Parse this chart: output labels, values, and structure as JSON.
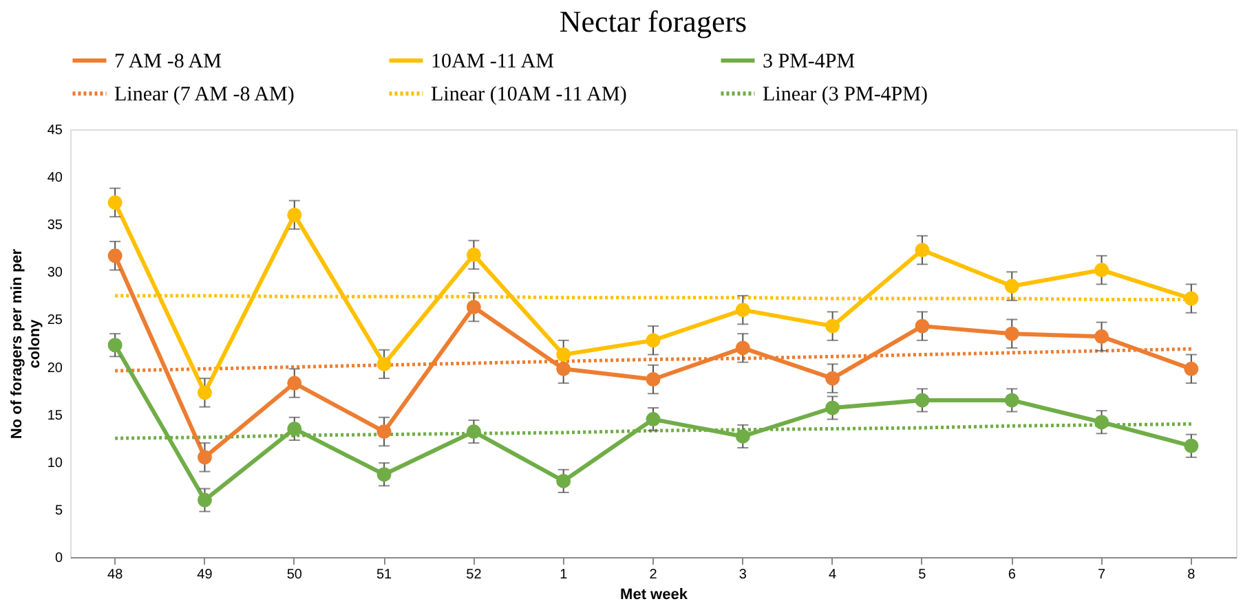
{
  "chart_data": {
    "type": "line",
    "title": "Nectar foragers",
    "xlabel": "Met week",
    "ylabel": "No of foragers per  min per colony",
    "categories": [
      "48",
      "49",
      "50",
      "51",
      "52",
      "1",
      "2",
      "3",
      "4",
      "5",
      "6",
      "7",
      "8"
    ],
    "ylim": [
      0,
      45
    ],
    "yticks": [
      0,
      5,
      10,
      15,
      20,
      25,
      30,
      35,
      40,
      45
    ],
    "grid": false,
    "legend": "top",
    "series": [
      {
        "name": "7 AM -8 AM",
        "color": "#ed7d31",
        "marker": "circle",
        "line_style": "solid",
        "values": [
          31.7,
          10.5,
          18.3,
          13.2,
          26.3,
          19.8,
          18.7,
          22.0,
          18.8,
          24.3,
          23.5,
          23.2,
          19.8
        ],
        "errors": [
          1.5,
          1.5,
          1.5,
          1.5,
          1.5,
          1.5,
          1.5,
          1.5,
          1.5,
          1.5,
          1.5,
          1.5,
          1.5
        ]
      },
      {
        "name": "10AM -11 AM",
        "color": "#ffc000",
        "marker": "circle",
        "line_style": "solid",
        "values": [
          37.3,
          17.3,
          36.0,
          20.3,
          31.8,
          21.3,
          22.8,
          26.0,
          24.3,
          32.3,
          28.5,
          30.2,
          27.2
        ],
        "errors": [
          1.5,
          1.5,
          1.5,
          1.5,
          1.5,
          1.5,
          1.5,
          1.5,
          1.5,
          1.5,
          1.5,
          1.5,
          1.5
        ]
      },
      {
        "name": "3 PM-4PM",
        "color": "#70ad47",
        "marker": "circle",
        "line_style": "solid",
        "values": [
          22.3,
          6.0,
          13.5,
          8.7,
          13.2,
          8.0,
          14.5,
          12.7,
          15.7,
          16.5,
          16.5,
          14.2,
          11.7
        ],
        "errors": [
          1.2,
          1.2,
          1.2,
          1.2,
          1.2,
          1.2,
          1.2,
          1.2,
          1.2,
          1.2,
          1.2,
          1.2,
          1.2
        ]
      },
      {
        "name": "Linear (7 AM -8 AM)",
        "type": "line",
        "color": "#ed7d31",
        "marker": "none",
        "line_style": "dotted",
        "values": [
          19.6,
          19.8,
          20.0,
          20.2,
          20.4,
          20.6,
          20.8,
          20.9,
          21.1,
          21.3,
          21.5,
          21.7,
          21.9
        ]
      },
      {
        "name": "Linear (10AM -11 AM)",
        "type": "line",
        "color": "#ffc000",
        "marker": "none",
        "line_style": "dotted",
        "values": [
          27.5,
          27.5,
          27.4,
          27.4,
          27.4,
          27.3,
          27.3,
          27.3,
          27.2,
          27.2,
          27.2,
          27.1,
          27.1
        ]
      },
      {
        "name": "Linear (3 PM-4PM)",
        "type": "line",
        "color": "#70ad47",
        "marker": "none",
        "line_style": "dotted",
        "values": [
          12.5,
          12.6,
          12.8,
          12.9,
          13.0,
          13.1,
          13.3,
          13.4,
          13.5,
          13.6,
          13.8,
          13.9,
          14.0
        ]
      }
    ]
  }
}
